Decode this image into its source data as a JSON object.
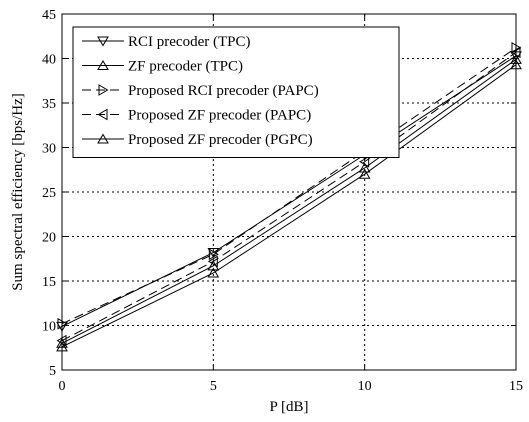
{
  "chart_data": {
    "type": "line",
    "title": "",
    "xlabel": "P [dB]",
    "ylabel": "Sum spectral efficiency [bps/Hz]",
    "x": [
      0,
      5,
      10,
      15
    ],
    "xlim": [
      0,
      15
    ],
    "ylim": [
      5,
      45
    ],
    "xticks": [
      0,
      5,
      10,
      15
    ],
    "yticks": [
      5,
      10,
      15,
      20,
      25,
      30,
      35,
      40,
      45
    ],
    "grid": true,
    "legend_position": "top-left",
    "series": [
      {
        "name": "RCI precoder (TPC)",
        "marker": "triangle-down",
        "dash": "solid",
        "values": [
          9.9,
          18.2,
          29.2,
          40.3
        ]
      },
      {
        "name": "ZF precoder (TPC)",
        "marker": "triangle-up",
        "dash": "solid",
        "values": [
          7.6,
          15.9,
          27.0,
          39.3
        ]
      },
      {
        "name": "Proposed RCI precoder (PAPC)",
        "marker": "triangle-right",
        "dash": "dashed",
        "values": [
          10.2,
          18.0,
          29.6,
          41.2
        ]
      },
      {
        "name": "Proposed ZF precoder (PAPC)",
        "marker": "triangle-left",
        "dash": "dashed",
        "values": [
          8.3,
          17.2,
          28.4,
          40.7
        ]
      },
      {
        "name": "Proposed ZF precoder (PGPC)",
        "marker": "triangle-up",
        "dash": "solid",
        "values": [
          8.0,
          16.7,
          27.7,
          39.9
        ]
      }
    ]
  }
}
